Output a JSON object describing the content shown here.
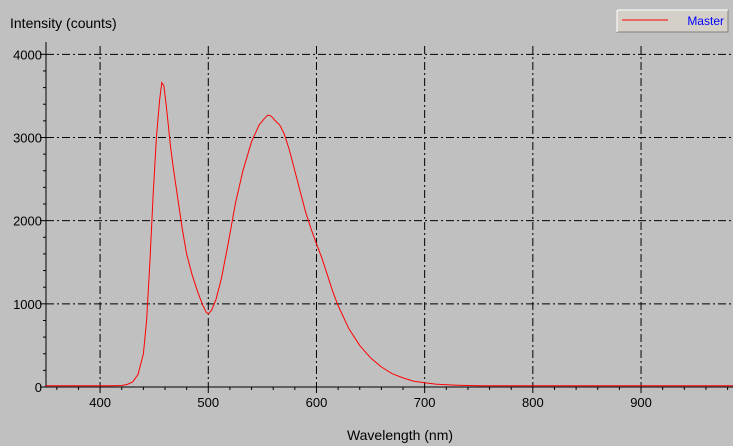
{
  "chart_data": {
    "type": "line",
    "title": "",
    "ylabel": "Intensity (counts)",
    "xlabel": "Wavelength (nm)",
    "xlim": [
      350,
      985
    ],
    "ylim": [
      0,
      4100
    ],
    "x_ticks": [
      400,
      500,
      600,
      700,
      800,
      900
    ],
    "y_ticks": [
      0,
      1000,
      2000,
      3000,
      4000
    ],
    "grid": true,
    "legend_position": "top-right",
    "series": [
      {
        "name": "Master",
        "color": "#ff0000",
        "x": [
          350,
          380,
          400,
          410,
          420,
          425,
          430,
          435,
          440,
          443,
          446,
          449,
          452,
          455,
          457,
          459,
          461,
          463,
          465,
          468,
          472,
          476,
          480,
          485,
          490,
          495,
          498,
          500,
          503,
          507,
          512,
          518,
          525,
          532,
          540,
          547,
          552,
          555,
          558,
          562,
          566,
          570,
          575,
          580,
          585,
          590,
          595,
          600,
          605,
          610,
          615,
          620,
          630,
          640,
          650,
          660,
          670,
          680,
          690,
          700,
          710,
          720,
          730,
          740,
          750,
          770,
          800,
          850,
          900,
          950,
          985
        ],
        "y": [
          15,
          15,
          15,
          15,
          18,
          30,
          60,
          150,
          400,
          800,
          1500,
          2300,
          3000,
          3450,
          3660,
          3620,
          3400,
          3150,
          2900,
          2600,
          2250,
          1900,
          1600,
          1350,
          1150,
          980,
          900,
          880,
          920,
          1050,
          1300,
          1700,
          2200,
          2600,
          2950,
          3150,
          3230,
          3270,
          3260,
          3200,
          3150,
          3050,
          2850,
          2600,
          2350,
          2100,
          1900,
          1720,
          1550,
          1350,
          1150,
          980,
          700,
          500,
          350,
          240,
          160,
          110,
          70,
          50,
          35,
          28,
          22,
          18,
          16,
          15,
          15,
          15,
          15,
          15,
          15
        ]
      }
    ]
  }
}
